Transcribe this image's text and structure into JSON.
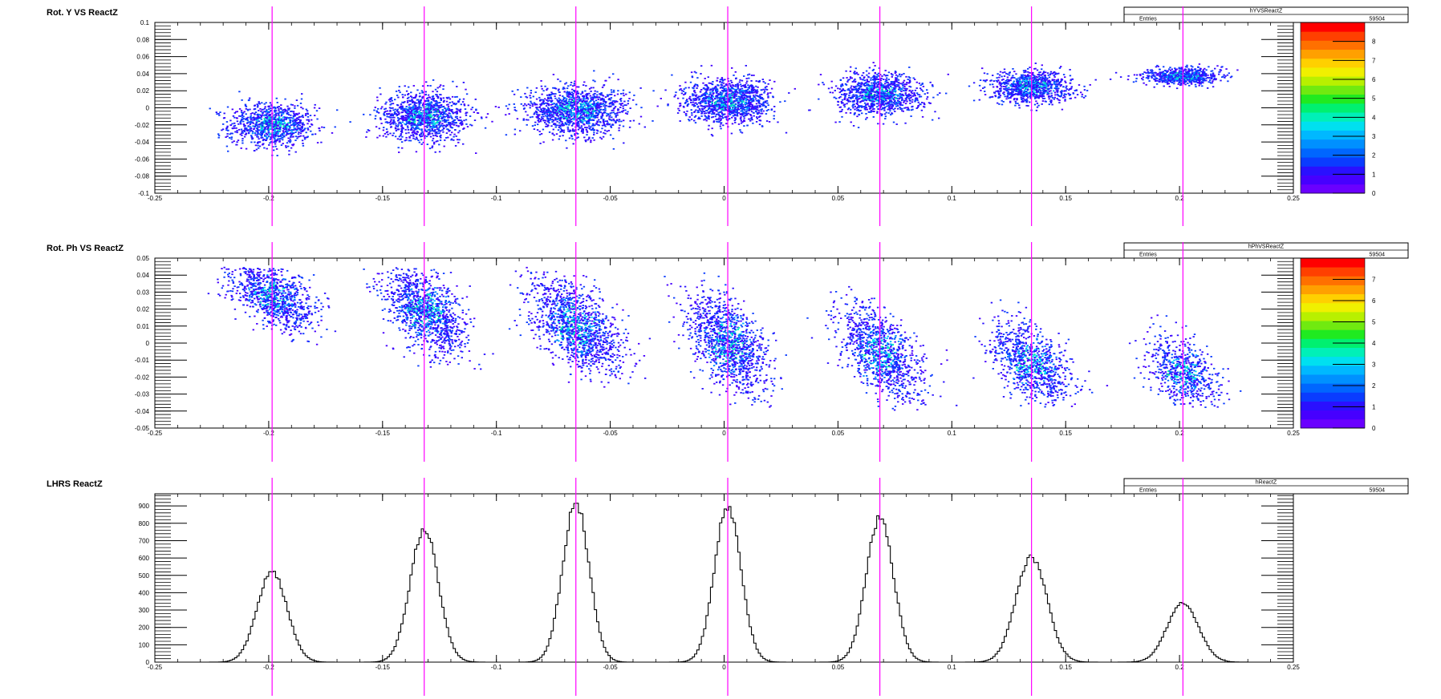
{
  "window": {
    "width": 1796,
    "height": 872
  },
  "marker_lines": {
    "color": "#ff00ff",
    "x": [
      -0.1985,
      -0.1317,
      -0.0651,
      0.0016,
      0.0684,
      0.135,
      0.2015
    ]
  },
  "panels": [
    {
      "id": "panel-yvsreactz",
      "title": "Rot. Y VS ReactZ",
      "stats": {
        "name": "hYVSReactZ",
        "entries_label": "Entries",
        "entries_value": "59504"
      },
      "chart_data": {
        "type": "heatmap",
        "title": "Rot. Y VS ReactZ",
        "xlabel": "",
        "ylabel": "",
        "xlim": [
          -0.25,
          0.25
        ],
        "ylim": [
          -0.1,
          0.1
        ],
        "x_ticks": [
          "-0.25",
          "-0.2",
          "-0.15",
          "-0.1",
          "-0.05",
          "0",
          "0.05",
          "0.1",
          "0.15",
          "0.2",
          "0.25"
        ],
        "x_tick_values": [
          -0.25,
          -0.2,
          -0.15,
          -0.1,
          -0.05,
          0,
          0.05,
          0.1,
          0.15,
          0.2,
          0.25
        ],
        "y_ticks": [
          "-0.1",
          "-0.08",
          "-0.06",
          "-0.04",
          "-0.02",
          "0",
          "0.02",
          "0.04",
          "0.06",
          "0.08",
          "0.1"
        ],
        "y_tick_values": [
          -0.1,
          -0.08,
          -0.06,
          -0.04,
          -0.02,
          0,
          0.02,
          0.04,
          0.06,
          0.08,
          0.1
        ],
        "z_range": [
          0,
          9
        ],
        "z_ticks": [
          "0",
          "1",
          "2",
          "3",
          "4",
          "5",
          "6",
          "7",
          "8"
        ],
        "z_tick_values": [
          0,
          1,
          2,
          3,
          4,
          5,
          6,
          7,
          8
        ],
        "clusters": [
          {
            "x": -0.1985,
            "y": -0.02,
            "sx": 0.0095,
            "sy": 0.013,
            "rho": 0.0,
            "n": 950,
            "peak": 5
          },
          {
            "x": -0.1317,
            "y": -0.01,
            "sx": 0.0095,
            "sy": 0.014,
            "rho": 0.0,
            "n": 1150,
            "peak": 5
          },
          {
            "x": -0.0651,
            "y": -0.003,
            "sx": 0.011,
            "sy": 0.014,
            "rho": 0.0,
            "n": 1300,
            "peak": 5
          },
          {
            "x": 0.0016,
            "y": 0.008,
            "sx": 0.0095,
            "sy": 0.013,
            "rho": 0.0,
            "n": 1200,
            "peak": 5
          },
          {
            "x": 0.0684,
            "y": 0.016,
            "sx": 0.0095,
            "sy": 0.012,
            "rho": 0.0,
            "n": 1050,
            "peak": 5
          },
          {
            "x": 0.135,
            "y": 0.025,
            "sx": 0.009,
            "sy": 0.009,
            "rho": 0.0,
            "n": 900,
            "peak": 5
          },
          {
            "x": 0.2015,
            "y": 0.037,
            "sx": 0.008,
            "sy": 0.005,
            "rho": 0.0,
            "n": 650,
            "peak": 5
          }
        ]
      }
    },
    {
      "id": "panel-phvsreactz",
      "title": "Rot. Ph VS ReactZ",
      "stats": {
        "name": "hPhVSReactZ",
        "entries_label": "Entries",
        "entries_value": "59504"
      },
      "chart_data": {
        "type": "heatmap",
        "title": "Rot. Ph VS ReactZ",
        "xlabel": "",
        "ylabel": "",
        "xlim": [
          -0.25,
          0.25
        ],
        "ylim": [
          -0.05,
          0.05
        ],
        "x_ticks": [
          "-0.25",
          "-0.2",
          "-0.15",
          "-0.1",
          "-0.05",
          "0",
          "0.05",
          "0.1",
          "0.15",
          "0.2",
          "0.25"
        ],
        "x_tick_values": [
          -0.25,
          -0.2,
          -0.15,
          -0.1,
          -0.05,
          0,
          0.05,
          0.1,
          0.15,
          0.2,
          0.25
        ],
        "y_ticks": [
          "-0.05",
          "-0.04",
          "-0.03",
          "-0.02",
          "-0.01",
          "0",
          "0.01",
          "0.02",
          "0.03",
          "0.04",
          "0.05"
        ],
        "y_tick_values": [
          -0.05,
          -0.04,
          -0.03,
          -0.02,
          -0.01,
          0,
          0.01,
          0.02,
          0.03,
          0.04,
          0.05
        ],
        "z_range": [
          0,
          8
        ],
        "z_ticks": [
          "0",
          "1",
          "2",
          "3",
          "4",
          "5",
          "6",
          "7"
        ],
        "z_tick_values": [
          0,
          1,
          2,
          3,
          4,
          5,
          6,
          7
        ],
        "clusters": [
          {
            "x": -0.1985,
            "y": 0.028,
            "sx": 0.009,
            "sy": 0.01,
            "rho": -0.5,
            "n": 950,
            "peak": 4,
            "ymin": -0.008,
            "ymax": 0.0445
          },
          {
            "x": -0.1317,
            "y": 0.019,
            "sx": 0.009,
            "sy": 0.013,
            "rho": -0.5,
            "n": 1150,
            "peak": 4,
            "ymin": -0.016,
            "ymax": 0.0445
          },
          {
            "x": -0.0651,
            "y": 0.01,
            "sx": 0.01,
            "sy": 0.014,
            "rho": -0.55,
            "n": 1300,
            "peak": 4,
            "ymin": -0.026,
            "ymax": 0.0445
          },
          {
            "x": 0.0016,
            "y": 0.0,
            "sx": 0.009,
            "sy": 0.015,
            "rho": -0.55,
            "n": 1200,
            "peak": 4,
            "ymin": -0.038,
            "ymax": 0.0445
          },
          {
            "x": 0.0684,
            "y": -0.006,
            "sx": 0.009,
            "sy": 0.014,
            "rho": -0.55,
            "n": 1050,
            "peak": 4,
            "ymin": -0.04,
            "ymax": 0.0445
          },
          {
            "x": 0.135,
            "y": -0.012,
            "sx": 0.009,
            "sy": 0.012,
            "rho": -0.5,
            "n": 900,
            "peak": 4,
            "ymin": -0.038,
            "ymax": 0.0445
          },
          {
            "x": 0.2015,
            "y": -0.017,
            "sx": 0.008,
            "sy": 0.01,
            "rho": -0.4,
            "n": 650,
            "peak": 4,
            "ymin": -0.038,
            "ymax": 0.0445
          }
        ]
      }
    },
    {
      "id": "panel-reactz",
      "title": "LHRS ReactZ",
      "stats": {
        "name": "hReactZ",
        "entries_label": "Entries",
        "entries_value": "59504"
      },
      "chart_data": {
        "type": "line",
        "subtype": "histogram",
        "title": "LHRS ReactZ",
        "xlabel": "",
        "ylabel": "",
        "xlim": [
          -0.25,
          0.25
        ],
        "ylim": [
          0,
          970
        ],
        "x_ticks": [
          "-0.25",
          "-0.2",
          "-0.15",
          "-0.1",
          "-0.05",
          "0",
          "0.05",
          "0.1",
          "0.15",
          "0.2",
          "0.25"
        ],
        "x_tick_values": [
          -0.25,
          -0.2,
          -0.15,
          -0.1,
          -0.05,
          0,
          0.05,
          0.1,
          0.15,
          0.2,
          0.25
        ],
        "y_ticks": [
          "0",
          "100",
          "200",
          "300",
          "400",
          "500",
          "600",
          "700",
          "800",
          "900"
        ],
        "y_tick_values": [
          0,
          100,
          200,
          300,
          400,
          500,
          600,
          700,
          800,
          900
        ],
        "bin_width": 0.001,
        "peaks": [
          {
            "mean": -0.1985,
            "sigma": 0.0065,
            "height": 525
          },
          {
            "mean": -0.1317,
            "sigma": 0.0062,
            "height": 765
          },
          {
            "mean": -0.0651,
            "sigma": 0.0058,
            "height": 920
          },
          {
            "mean": 0.0016,
            "sigma": 0.0058,
            "height": 900
          },
          {
            "mean": 0.0684,
            "sigma": 0.006,
            "height": 830
          },
          {
            "mean": 0.135,
            "sigma": 0.0068,
            "height": 605
          },
          {
            "mean": 0.2015,
            "sigma": 0.0068,
            "height": 345
          }
        ]
      }
    }
  ]
}
